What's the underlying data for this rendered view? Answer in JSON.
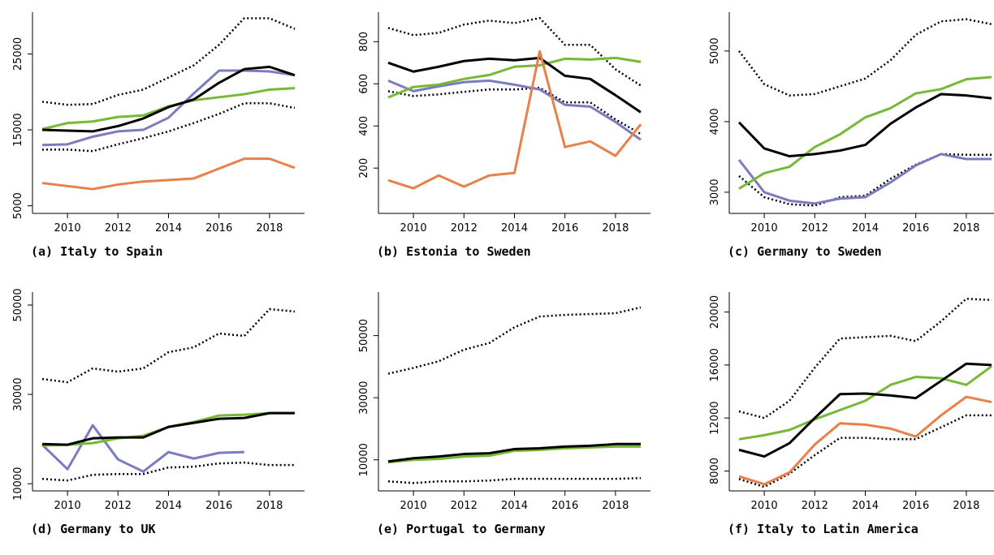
{
  "chart_data": [
    {
      "type": "line",
      "title": "(a) Italy to Spain",
      "x": [
        2009,
        2010,
        2011,
        2012,
        2013,
        2014,
        2015,
        2016,
        2017,
        2018,
        2019
      ],
      "xlim": [
        2009,
        2019
      ],
      "xticks": [
        2010,
        2012,
        2014,
        2016,
        2018
      ],
      "ylim": [
        4000,
        30500
      ],
      "yticks": [
        5000,
        15000,
        25000
      ],
      "series": [
        {
          "color": "#000000",
          "dash": "dotted",
          "values": [
            18700,
            18300,
            18400,
            19600,
            20300,
            21900,
            23500,
            26200,
            29700,
            29700,
            28300
          ]
        },
        {
          "color": "#000000",
          "dash": "dotted",
          "values": [
            12400,
            12400,
            12200,
            13100,
            13900,
            14800,
            15900,
            17100,
            18500,
            18500,
            17900
          ]
        },
        {
          "color": "#e8804a",
          "values": [
            8000,
            7600,
            7200,
            7800,
            8200,
            8400,
            8600,
            9900,
            11200,
            11200,
            10000
          ]
        },
        {
          "color": "#7b7bbf",
          "values": [
            13000,
            13100,
            14100,
            14800,
            15000,
            16600,
            19800,
            22800,
            22800,
            22700,
            22200
          ]
        },
        {
          "color": "#77b837",
          "values": [
            15100,
            15900,
            16100,
            16700,
            16900,
            18100,
            18900,
            19300,
            19700,
            20300,
            20500
          ]
        },
        {
          "color": "#000000",
          "values": [
            15000,
            14900,
            14800,
            15500,
            16500,
            18000,
            19000,
            21200,
            23000,
            23300,
            22200
          ]
        }
      ]
    },
    {
      "type": "line",
      "title": "(b) Estonia to Sweden",
      "x": [
        2009,
        2010,
        2011,
        2012,
        2013,
        2014,
        2015,
        2016,
        2017,
        2018,
        2019
      ],
      "xlim": [
        2009,
        2019
      ],
      "xticks": [
        2010,
        2012,
        2014,
        2016,
        2018
      ],
      "ylim": [
        -15,
        940
      ],
      "yticks": [
        200,
        400,
        600,
        800
      ],
      "series": [
        {
          "color": "#000000",
          "dash": "dotted",
          "values": [
            865,
            831,
            842,
            881,
            900,
            888,
            912,
            785,
            785,
            669,
            592
          ]
        },
        {
          "color": "#000000",
          "dash": "dotted",
          "values": [
            565,
            542,
            550,
            562,
            573,
            573,
            581,
            512,
            512,
            431,
            362
          ]
        },
        {
          "color": "#7b7bbf",
          "values": [
            615,
            565,
            588,
            608,
            615,
            596,
            573,
            500,
            492,
            419,
            335
          ]
        },
        {
          "color": "#77b837",
          "values": [
            535,
            585,
            596,
            623,
            642,
            681,
            688,
            719,
            715,
            723,
            704
          ]
        },
        {
          "color": "#000000",
          "values": [
            700,
            658,
            681,
            708,
            719,
            712,
            723,
            638,
            623,
            546,
            465
          ]
        },
        {
          "color": "#e8804a",
          "values": [
            142,
            104,
            165,
            112,
            165,
            177,
            754,
            300,
            327,
            258,
            408
          ]
        }
      ]
    },
    {
      "type": "line",
      "title": "(c) Germany to Sweden",
      "x": [
        2009,
        2010,
        2011,
        2012,
        2013,
        2014,
        2015,
        2016,
        2017,
        2018,
        2019
      ],
      "xlim": [
        2009,
        2019
      ],
      "xticks": [
        2010,
        2012,
        2014,
        2016,
        2018
      ],
      "ylim": [
        2700,
        5550
      ],
      "yticks": [
        3000,
        4000,
        5000
      ],
      "series": [
        {
          "color": "#000000",
          "dash": "dotted",
          "values": [
            5000,
            4530,
            4370,
            4390,
            4500,
            4610,
            4870,
            5230,
            5420,
            5450,
            5380
          ]
        },
        {
          "color": "#000000",
          "dash": "dotted",
          "values": [
            3230,
            2930,
            2830,
            2810,
            2930,
            2950,
            3190,
            3390,
            3540,
            3530,
            3530
          ]
        },
        {
          "color": "#7b7bbf",
          "values": [
            3460,
            3000,
            2880,
            2840,
            2910,
            2930,
            3140,
            3380,
            3540,
            3470,
            3470
          ]
        },
        {
          "color": "#77b837",
          "values": [
            3050,
            3270,
            3360,
            3640,
            3820,
            4060,
            4190,
            4400,
            4460,
            4600,
            4630
          ]
        },
        {
          "color": "#000000",
          "values": [
            3990,
            3620,
            3510,
            3540,
            3590,
            3670,
            3970,
            4200,
            4390,
            4370,
            4330
          ]
        }
      ]
    },
    {
      "type": "line",
      "title": "(d) Germany to UK",
      "x": [
        2009,
        2010,
        2011,
        2012,
        2013,
        2014,
        2015,
        2016,
        2017,
        2018,
        2019
      ],
      "xlim": [
        2009,
        2019
      ],
      "xticks": [
        2010,
        2012,
        2014,
        2016,
        2018
      ],
      "ylim": [
        8400,
        52900
      ],
      "yticks": [
        10000,
        30000,
        50000
      ],
      "series": [
        {
          "color": "#000000",
          "dash": "dotted",
          "values": [
            33450,
            32730,
            35820,
            35090,
            35820,
            39450,
            40550,
            43640,
            43090,
            49090,
            48550
          ]
        },
        {
          "color": "#000000",
          "dash": "dotted",
          "values": [
            11090,
            10730,
            12000,
            12180,
            12180,
            13640,
            13820,
            14550,
            14730,
            14180,
            14180
          ]
        },
        {
          "color": "#7b7bbf",
          "values": [
            18730,
            13270,
            23090,
            15450,
            12730,
            17090,
            15640,
            16910,
            17090,
            null,
            null
          ]
        },
        {
          "color": "#77b837",
          "values": [
            18550,
            18730,
            19090,
            20180,
            20730,
            22730,
            23820,
            25270,
            25450,
            25820,
            25820
          ]
        },
        {
          "color": "#000000",
          "values": [
            18900,
            18730,
            20180,
            20360,
            20360,
            22730,
            23640,
            24550,
            24730,
            25820,
            25820
          ]
        }
      ]
    },
    {
      "type": "line",
      "title": "(e) Portugal to Germany",
      "x": [
        2009,
        2010,
        2011,
        2012,
        2013,
        2014,
        2015,
        2016,
        2017,
        2018,
        2019
      ],
      "xlim": [
        2009,
        2019
      ],
      "xticks": [
        2010,
        2012,
        2014,
        2016,
        2018
      ],
      "ylim": [
        0,
        64000
      ],
      "yticks": [
        10000,
        30000,
        50000
      ],
      "series": [
        {
          "color": "#000000",
          "dash": "dotted",
          "values": [
            37730,
            39600,
            41730,
            45470,
            47600,
            52670,
            56130,
            56670,
            56930,
            57200,
            59070
          ]
        },
        {
          "color": "#000000",
          "dash": "dotted",
          "values": [
            3070,
            2530,
            3070,
            3070,
            3330,
            3870,
            3870,
            3870,
            3870,
            3870,
            4130
          ]
        },
        {
          "color": "#77b837",
          "values": [
            9200,
            10000,
            10270,
            11070,
            11330,
            12930,
            13200,
            13730,
            14000,
            14270,
            14270
          ]
        },
        {
          "color": "#000000",
          "values": [
            9470,
            10530,
            11070,
            11870,
            12130,
            13470,
            13730,
            14270,
            14530,
            15070,
            15070
          ]
        }
      ]
    },
    {
      "type": "line",
      "title": "(f) Italy to Latin America",
      "x": [
        2009,
        2010,
        2011,
        2012,
        2013,
        2014,
        2015,
        2016,
        2017,
        2018,
        2019
      ],
      "xlim": [
        2009,
        2019
      ],
      "xticks": [
        2010,
        2012,
        2014,
        2016,
        2018
      ],
      "ylim": [
        6500,
        21500
      ],
      "yticks": [
        8000,
        12000,
        16000,
        20000
      ],
      "series": [
        {
          "color": "#000000",
          "dash": "dotted",
          "values": [
            12500,
            12000,
            13300,
            15800,
            18000,
            18100,
            18200,
            17800,
            19300,
            21000,
            20900
          ]
        },
        {
          "color": "#000000",
          "dash": "dotted",
          "values": [
            7400,
            6800,
            7800,
            9200,
            10500,
            10500,
            10400,
            10400,
            11300,
            12200,
            12200
          ]
        },
        {
          "color": "#e8804a",
          "values": [
            7600,
            7000,
            7900,
            10000,
            11600,
            11500,
            11200,
            10600,
            12200,
            13600,
            13200
          ]
        },
        {
          "color": "#77b837",
          "values": [
            10400,
            10700,
            11100,
            11900,
            12600,
            13300,
            14500,
            15100,
            15000,
            14500,
            15900
          ]
        },
        {
          "color": "#000000",
          "values": [
            9600,
            9100,
            10100,
            12000,
            13800,
            13850,
            13700,
            13500,
            14800,
            16100,
            16000
          ]
        }
      ]
    }
  ]
}
